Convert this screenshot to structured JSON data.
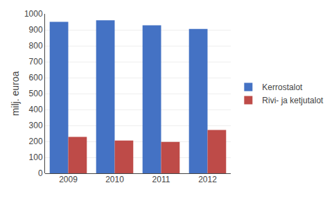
{
  "chart_data": {
    "type": "bar",
    "categories": [
      "2009",
      "2010",
      "2011",
      "2012"
    ],
    "series": [
      {
        "name": "Kerrostalot",
        "color": "#4472C4",
        "values": [
          950,
          960,
          928,
          905
        ]
      },
      {
        "name": "Rivi- ja ketjutalot",
        "color": "#BE4B48",
        "values": [
          228,
          205,
          197,
          272
        ]
      }
    ],
    "ylabel": "milj. euroa",
    "ylim": [
      0,
      1000
    ],
    "yticks": [
      0,
      100,
      200,
      300,
      400,
      500,
      600,
      700,
      800,
      900,
      1000
    ],
    "grid": true,
    "legend": "right"
  }
}
